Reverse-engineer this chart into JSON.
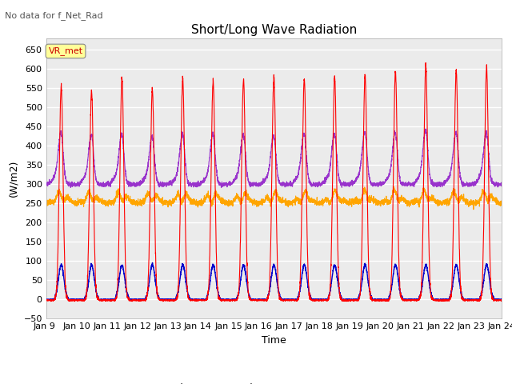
{
  "title": "Short/Long Wave Radiation",
  "subtitle": "No data for f_Net_Rad",
  "xlabel": "Time",
  "ylabel": "(W/m2)",
  "ylim": [
    -50,
    680
  ],
  "yticks": [
    -50,
    0,
    50,
    100,
    150,
    200,
    250,
    300,
    350,
    400,
    450,
    500,
    550,
    600,
    650
  ],
  "xlim_days": [
    9,
    24
  ],
  "xtick_labels": [
    "Jan 9 ",
    "Jan 10",
    "Jan 11",
    "Jan 12",
    "Jan 13",
    "Jan 14",
    "Jan 15",
    "Jan 16",
    "Jan 17",
    "Jan 18",
    "Jan 19",
    "Jan 20",
    "Jan 21",
    "Jan 22",
    "Jan 23",
    "Jan 24"
  ],
  "legend_label": "VR_met",
  "colors": {
    "SW_in": "#FF0000",
    "LW_in": "#FFA500",
    "SW_out": "#0000CC",
    "LW_out": "#9933CC"
  },
  "background_plot": "#EBEBEB",
  "background_fig": "#FFFFFF",
  "grid_color": "#FFFFFF",
  "SW_in_peaks": [
    550,
    540,
    575,
    545,
    570,
    565,
    570,
    575,
    570,
    575,
    580,
    590,
    605,
    595,
    600
  ],
  "LW_out_peaks": [
    420,
    415,
    415,
    410,
    415,
    415,
    415,
    410,
    415,
    415,
    420,
    420,
    425,
    420,
    420
  ],
  "LW_in_base": 250,
  "SW_out_peak": 90,
  "LW_out_base": 300
}
